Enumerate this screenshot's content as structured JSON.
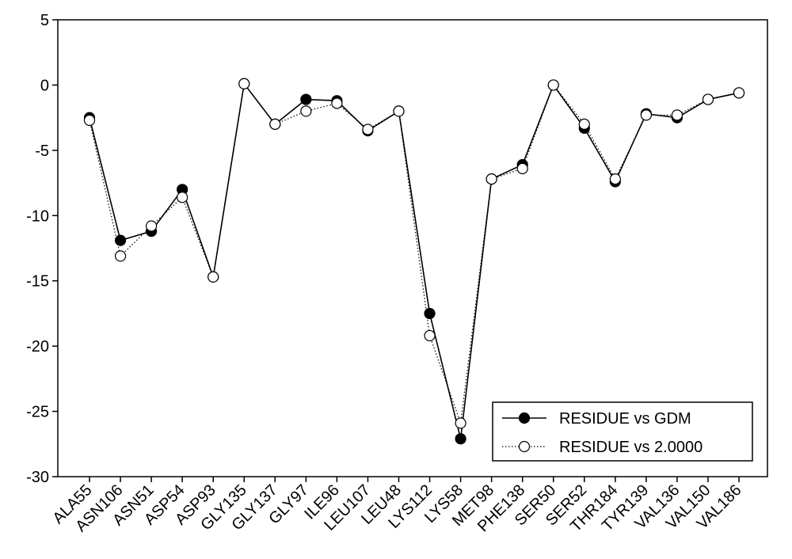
{
  "chart_data": {
    "type": "line",
    "title": "",
    "xlabel": "",
    "ylabel": "",
    "ylim": [
      -30,
      5
    ],
    "yticks": [
      5,
      0,
      -5,
      -10,
      -15,
      -20,
      -25,
      -30
    ],
    "ytick_labels": [
      "5",
      "0",
      "-5",
      "-10",
      "-15",
      "-20",
      "-25",
      "-30"
    ],
    "grid": false,
    "legend_position": "bottom-right",
    "categories": [
      "ALA55",
      "ASN106",
      "ASN51",
      "ASP54",
      "ASP93",
      "GLY135",
      "GLY137",
      "GLY97",
      "ILE96",
      "LEU107",
      "LEU48",
      "LYS112",
      "LYS58",
      "MET98",
      "PHE138",
      "SER50",
      "SER52",
      "THR184",
      "TYR139",
      "VAL136",
      "VAL150",
      "VAL186"
    ],
    "series": [
      {
        "name": "RESIDUE vs GDM",
        "style": "solid",
        "marker": "filled-circle",
        "color": "#000000",
        "values": [
          -2.5,
          -11.9,
          -11.2,
          -8.0,
          -14.7,
          0.1,
          -3.0,
          -1.1,
          -1.2,
          -3.5,
          -2.0,
          -17.5,
          -27.1,
          -7.2,
          -6.1,
          0.0,
          -3.3,
          -7.4,
          -2.2,
          -2.5,
          -1.1,
          -0.6
        ]
      },
      {
        "name": "RESIDUE vs 2.0000",
        "style": "dotted",
        "marker": "open-circle",
        "color": "#000000",
        "values": [
          -2.7,
          -13.1,
          -10.8,
          -8.6,
          -14.7,
          0.1,
          -3.0,
          -2.0,
          -1.4,
          -3.4,
          -2.0,
          -19.2,
          -25.9,
          -7.2,
          -6.4,
          0.0,
          -3.0,
          -7.2,
          -2.3,
          -2.3,
          -1.1,
          -0.6
        ]
      }
    ]
  }
}
